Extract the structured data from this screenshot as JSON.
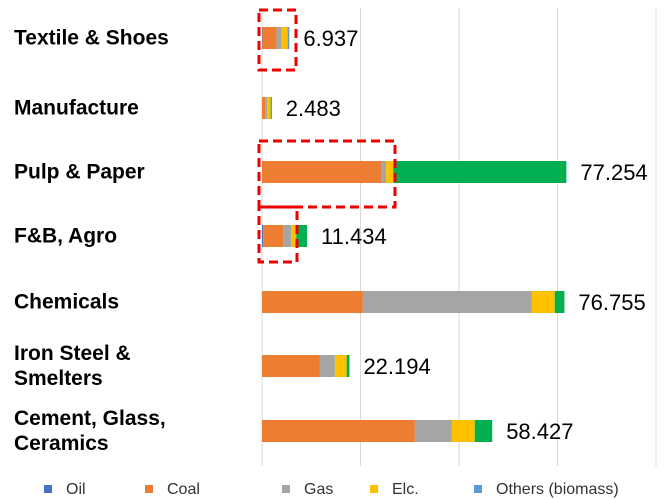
{
  "chart_data": {
    "type": "stacked-bar-horizontal",
    "categories": [
      "Textile & Shoes",
      "Manufacture",
      "Pulp & Paper",
      "F&B, Agro",
      "Chemicals",
      "Iron Steel &\nSmelters",
      "Cement, Glass,\nCeramics"
    ],
    "series": [
      {
        "name": "Oil",
        "color": "#4472c4",
        "values": [
          0.1,
          0,
          0,
          0.3,
          0,
          0,
          0
        ]
      },
      {
        "name": "Coal",
        "color": "#ed7d31",
        "values": [
          3.6,
          0.8,
          30.2,
          5.1,
          25.6,
          14.7,
          38.8
        ]
      },
      {
        "name": "Gas",
        "color": "#a5a5a5",
        "values": [
          1.3,
          0.5,
          1.3,
          2.0,
          42.9,
          3.8,
          9.4
        ]
      },
      {
        "name": "Elc.",
        "color": "#ffc000",
        "values": [
          1.5,
          0.9,
          1.8,
          1.3,
          5.8,
          3.0,
          5.8
        ]
      },
      {
        "name": "Others (biomass)",
        "color": "#5b9bd5",
        "values": [
          0.437,
          0,
          0,
          0,
          0,
          0,
          0
        ]
      },
      {
        "color": "#00b050",
        "values": [
          0,
          0.283,
          43.954,
          2.734,
          2.455,
          0.694,
          4.427
        ]
      }
    ],
    "totals": [
      6.937,
      2.483,
      77.254,
      11.434,
      76.755,
      22.194,
      58.427
    ],
    "xlim": [
      0,
      100
    ],
    "xticks": [
      0,
      25,
      50,
      75,
      100
    ],
    "grid": true,
    "legend": "bottom"
  }
}
